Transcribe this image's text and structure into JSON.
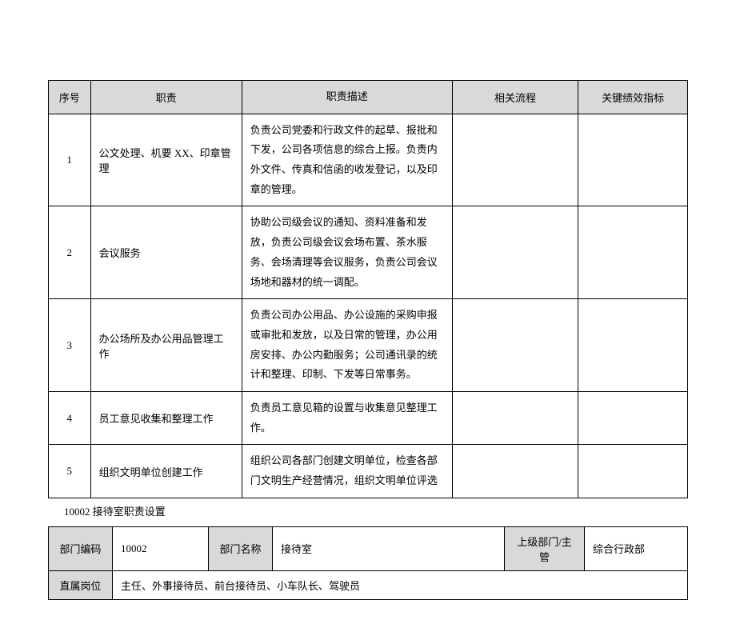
{
  "main_table": {
    "headers": {
      "seq": "序号",
      "duty": "职责",
      "desc": "职责描述",
      "proc": "相关流程",
      "kpi": "关键绩效指标"
    },
    "rows": [
      {
        "seq": "1",
        "duty": "公文处理、机要 XX、印章管理",
        "desc": "负责公司党委和行政文件的起草、报批和下发，公司各项信息的综合上报。负责内外文件、传真和信函的收发登记，以及印章的管理。",
        "proc": "",
        "kpi": ""
      },
      {
        "seq": "2",
        "duty": "会议服务",
        "desc": "协助公司级会议的通知、资料准备和发放，负责公司级会议会场布置、茶水服务、会场清理等会议服务，负责公司会议场地和器材的统一调配。",
        "proc": "",
        "kpi": ""
      },
      {
        "seq": "3",
        "duty": "办公场所及办公用品管理工作",
        "desc": "负责公司办公用品、办公设施的采购申报或审批和发放，以及日常的管理，办公用房安排、办公内勤服务；公司通讯录的统计和整理、印制、下发等日常事务。",
        "proc": "",
        "kpi": ""
      },
      {
        "seq": "4",
        "duty": "员工意见收集和整理工作",
        "desc": "负责员工意见箱的设置与收集意见整理工作。",
        "proc": "",
        "kpi": ""
      },
      {
        "seq": "5",
        "duty": "组织文明单位创建工作",
        "desc": "组织公司各部门创建文明单位，检查各部门文明生产经营情况，组织文明单位评选",
        "proc": "",
        "kpi": ""
      }
    ]
  },
  "section_caption": "10002  接待室职责设置",
  "info_table": {
    "labels": {
      "dept_code": "部门编码",
      "dept_name": "部门名称",
      "parent": "上级部门/主管",
      "positions": "直属岗位"
    },
    "values": {
      "dept_code": "10002",
      "dept_name": "接待室",
      "parent": "综合行政部",
      "positions": "主任、外事接待员、前台接待员、小车队长、驾驶员"
    }
  }
}
